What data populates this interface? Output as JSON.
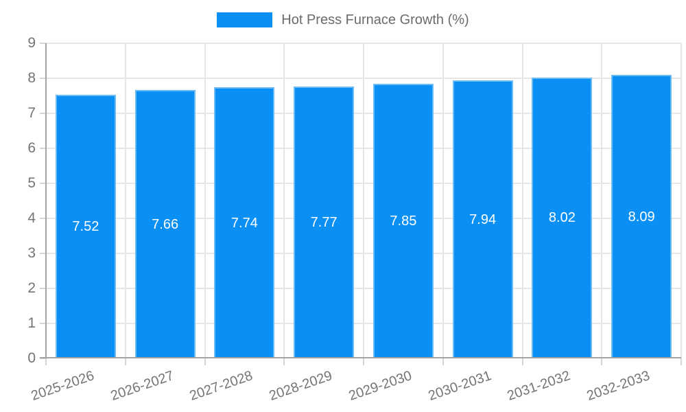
{
  "chart_data": {
    "type": "bar",
    "title": "Hot Press Furnace Growth (%)",
    "legend": "Hot Press Furnace Growth (%)",
    "legend_position": "top",
    "categories": [
      "2025-2026",
      "2026-2027",
      "2027-2028",
      "2028-2029",
      "2029-2030",
      "2030-2031",
      "2031-2032",
      "2032-2033"
    ],
    "values": [
      7.52,
      7.66,
      7.74,
      7.77,
      7.85,
      7.94,
      8.02,
      8.09
    ],
    "value_labels": [
      "7.52",
      "7.66",
      "7.74",
      "7.77",
      "7.85",
      "7.94",
      "8.02",
      "8.09"
    ],
    "xlabel": "",
    "ylabel": "",
    "ylim": [
      0,
      9
    ],
    "ytick_step": 1,
    "ytick_labels": [
      "0",
      "1",
      "2",
      "3",
      "4",
      "5",
      "6",
      "7",
      "8",
      "9"
    ],
    "grid": true,
    "colors": {
      "bar": "#0a90f5",
      "bar_border": "#6cbcf8",
      "grid": "#e6e6e6",
      "tick": "#d5d5d5",
      "axis": "#a3a3a3",
      "tick_text": "#757575",
      "legend_text": "#6b6b6b",
      "value_text": "#ffffff",
      "background": "#ffffff"
    }
  }
}
